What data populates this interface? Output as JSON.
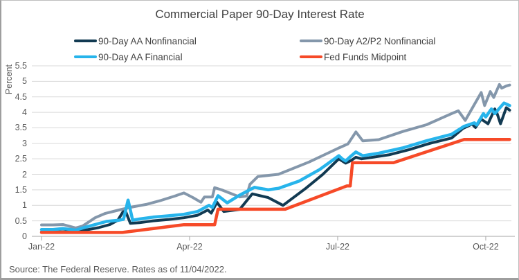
{
  "title": "Commercial Paper 90-Day Interest Rate",
  "source_note": "Source: The Federal Reserve. Rates as of 11/04/2022.",
  "chart_data": {
    "type": "line",
    "title": "Commercial Paper 90-Day Interest Rate",
    "xlabel": "",
    "ylabel": "Percent",
    "ylim": [
      0,
      5.5
    ],
    "ytick_step": 0.5,
    "yticks": [
      "5.5",
      "5",
      "4.5",
      "4",
      "3.5",
      "3",
      "2.5",
      "2",
      "1.5",
      "1",
      "0.5",
      "0"
    ],
    "xticks": [
      {
        "label": "Jan-22",
        "week": 0
      },
      {
        "label": "Apr-22",
        "week": 13
      },
      {
        "label": "Jul-22",
        "week": 26
      },
      {
        "label": "Oct-22",
        "week": 39
      }
    ],
    "x_unit": "weeks from first January 2022 observation",
    "grid": true,
    "legend_position": "top",
    "colors": {
      "grid": "#d9d9d9",
      "axis": "#a6a6a6",
      "text": "#595959",
      "title_text": "#404040"
    },
    "series": [
      {
        "name": "90-Day AA Nonfinancial",
        "color": "#123a52",
        "stroke_width": 4,
        "points": [
          [
            0,
            0.14
          ],
          [
            1.3,
            0.14
          ],
          [
            2.6,
            0.15
          ],
          [
            3.8,
            0.2
          ],
          [
            5,
            0.28
          ],
          [
            6,
            0.38
          ],
          [
            6.7,
            0.52
          ],
          [
            7.3,
            0.88
          ],
          [
            7.8,
            0.42
          ],
          [
            8.6,
            0.44
          ],
          [
            9.8,
            0.5
          ],
          [
            11.1,
            0.54
          ],
          [
            12.5,
            0.6
          ],
          [
            13.7,
            0.68
          ],
          [
            14.6,
            0.85
          ],
          [
            14.9,
            0.75
          ],
          [
            15.4,
            1.1
          ],
          [
            16,
            0.8
          ],
          [
            17.4,
            0.87
          ],
          [
            18.5,
            1.37
          ],
          [
            19.9,
            1.25
          ],
          [
            21.2,
            1.0
          ],
          [
            23.2,
            1.55
          ],
          [
            24.7,
            2.0
          ],
          [
            26.1,
            2.5
          ],
          [
            26.7,
            2.36
          ],
          [
            27.2,
            2.45
          ],
          [
            27.6,
            2.55
          ],
          [
            28.1,
            2.5
          ],
          [
            28.7,
            2.53
          ],
          [
            30.5,
            2.63
          ],
          [
            32.3,
            2.8
          ],
          [
            34.1,
            3.0
          ],
          [
            36,
            3.17
          ],
          [
            37,
            3.48
          ],
          [
            37.8,
            3.62
          ],
          [
            38.1,
            3.51
          ],
          [
            38.6,
            3.78
          ],
          [
            39.2,
            3.63
          ],
          [
            39.8,
            4.11
          ],
          [
            40,
            3.96
          ],
          [
            40.3,
            3.63
          ],
          [
            40.8,
            4.15
          ],
          [
            41.1,
            4.07
          ]
        ]
      },
      {
        "name": "90-Day A2/P2 Nonfinancial",
        "color": "#8497ab",
        "stroke_width": 4,
        "points": [
          [
            0,
            0.37
          ],
          [
            1,
            0.37
          ],
          [
            1.9,
            0.38
          ],
          [
            3,
            0.27
          ],
          [
            3.6,
            0.33
          ],
          [
            4.7,
            0.6
          ],
          [
            5.6,
            0.74
          ],
          [
            6.8,
            0.85
          ],
          [
            8,
            0.95
          ],
          [
            9.2,
            1.03
          ],
          [
            10.4,
            1.15
          ],
          [
            11.7,
            1.3
          ],
          [
            12.5,
            1.4
          ],
          [
            13.3,
            1.25
          ],
          [
            14,
            1.1
          ],
          [
            14.3,
            1.27
          ],
          [
            15,
            1.27
          ],
          [
            15.2,
            1.57
          ],
          [
            15.8,
            1.5
          ],
          [
            16.5,
            1.4
          ],
          [
            17.4,
            1.27
          ],
          [
            18,
            1.3
          ],
          [
            18.3,
            1.68
          ],
          [
            19,
            1.93
          ],
          [
            20.8,
            2.0
          ],
          [
            23.5,
            2.4
          ],
          [
            26.1,
            2.85
          ],
          [
            26.9,
            2.98
          ],
          [
            27.6,
            3.37
          ],
          [
            28.2,
            3.08
          ],
          [
            29.6,
            3.12
          ],
          [
            31.7,
            3.38
          ],
          [
            33.8,
            3.6
          ],
          [
            36,
            3.96
          ],
          [
            36.6,
            4.05
          ],
          [
            37.2,
            3.74
          ],
          [
            38.6,
            4.64
          ],
          [
            38.9,
            4.22
          ],
          [
            39.4,
            4.67
          ],
          [
            39.7,
            4.48
          ],
          [
            40.2,
            4.9
          ],
          [
            40.4,
            4.78
          ],
          [
            40.8,
            4.85
          ],
          [
            41.1,
            4.88
          ]
        ]
      },
      {
        "name": "90-Day AA Financial",
        "color": "#27b4eb",
        "stroke_width": 4.5,
        "points": [
          [
            0,
            0.22
          ],
          [
            1,
            0.22
          ],
          [
            1.9,
            0.25
          ],
          [
            3,
            0.2
          ],
          [
            3.8,
            0.29
          ],
          [
            4.7,
            0.38
          ],
          [
            5.7,
            0.48
          ],
          [
            6.8,
            0.52
          ],
          [
            7.2,
            0.55
          ],
          [
            7.6,
            1.17
          ],
          [
            8,
            0.52
          ],
          [
            8.6,
            0.56
          ],
          [
            9.8,
            0.62
          ],
          [
            11.1,
            0.66
          ],
          [
            12.5,
            0.71
          ],
          [
            13.7,
            0.8
          ],
          [
            14.7,
            1.0
          ],
          [
            15,
            0.93
          ],
          [
            15.5,
            1.31
          ],
          [
            16.3,
            1.08
          ],
          [
            17.4,
            1.33
          ],
          [
            18.7,
            1.58
          ],
          [
            19.9,
            1.5
          ],
          [
            20.8,
            1.55
          ],
          [
            22.6,
            1.78
          ],
          [
            24.4,
            2.15
          ],
          [
            26.1,
            2.6
          ],
          [
            26.4,
            2.5
          ],
          [
            26.7,
            2.43
          ],
          [
            27.2,
            2.6
          ],
          [
            27.6,
            2.72
          ],
          [
            28.2,
            2.6
          ],
          [
            29.6,
            2.68
          ],
          [
            31.7,
            2.85
          ],
          [
            33.8,
            3.08
          ],
          [
            36,
            3.29
          ],
          [
            37.1,
            3.55
          ],
          [
            38,
            3.66
          ],
          [
            38.2,
            3.59
          ],
          [
            38.8,
            3.96
          ],
          [
            39,
            3.85
          ],
          [
            39.5,
            4.11
          ],
          [
            39.8,
            3.96
          ],
          [
            40.6,
            4.3
          ],
          [
            41.1,
            4.22
          ]
        ]
      },
      {
        "name": "Fed Funds Midpoint",
        "color": "#f64a28",
        "stroke_width": 4.5,
        "points": [
          [
            0,
            0.125
          ],
          [
            7.1,
            0.125
          ],
          [
            12.5,
            0.375
          ],
          [
            15.2,
            0.375
          ],
          [
            15.5,
            0.875
          ],
          [
            21.4,
            0.875
          ],
          [
            26.8,
            1.625
          ],
          [
            27.1,
            1.625
          ],
          [
            27.3,
            2.375
          ],
          [
            30.9,
            2.375
          ],
          [
            37.1,
            3.125
          ],
          [
            41.1,
            3.125
          ]
        ]
      }
    ]
  }
}
